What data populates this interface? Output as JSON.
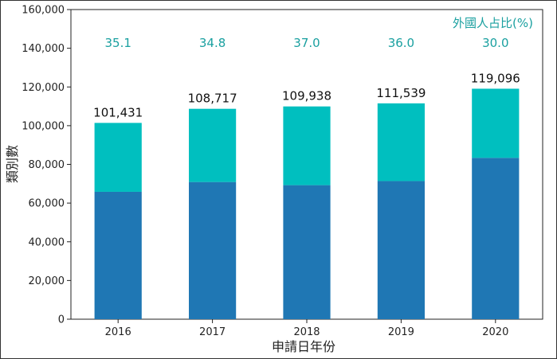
{
  "chart_data": {
    "type": "bar",
    "stacked": true,
    "categories": [
      "2016",
      "2017",
      "2018",
      "2019",
      "2020"
    ],
    "series": [
      {
        "values": [
          65823,
          70879,
          69258,
          71385,
          83367
        ],
        "color": "#1f77b4"
      },
      {
        "values": [
          35608,
          37838,
          40680,
          40154,
          35729
        ],
        "color": "#00bfbf"
      }
    ],
    "totals": [
      "101,431",
      "108,717",
      "109,938",
      "111,539",
      "119,096"
    ],
    "foreign_share": [
      "35.1",
      "34.8",
      "37.0",
      "36.0",
      "30.0"
    ],
    "foreign_share_title": "外國人占比(%)",
    "xlabel": "申請日年份",
    "ylabel": "類別數",
    "ylim": [
      0,
      160000
    ],
    "yticks": [
      "0",
      "20,000",
      "40,000",
      "60,000",
      "80,000",
      "100,000",
      "120,000",
      "140,000",
      "160,000"
    ],
    "ytick_values": [
      0,
      20000,
      40000,
      60000,
      80000,
      100000,
      120000,
      140000,
      160000
    ],
    "grid": false,
    "colors": {
      "share_text": "#1aa0a0"
    }
  }
}
